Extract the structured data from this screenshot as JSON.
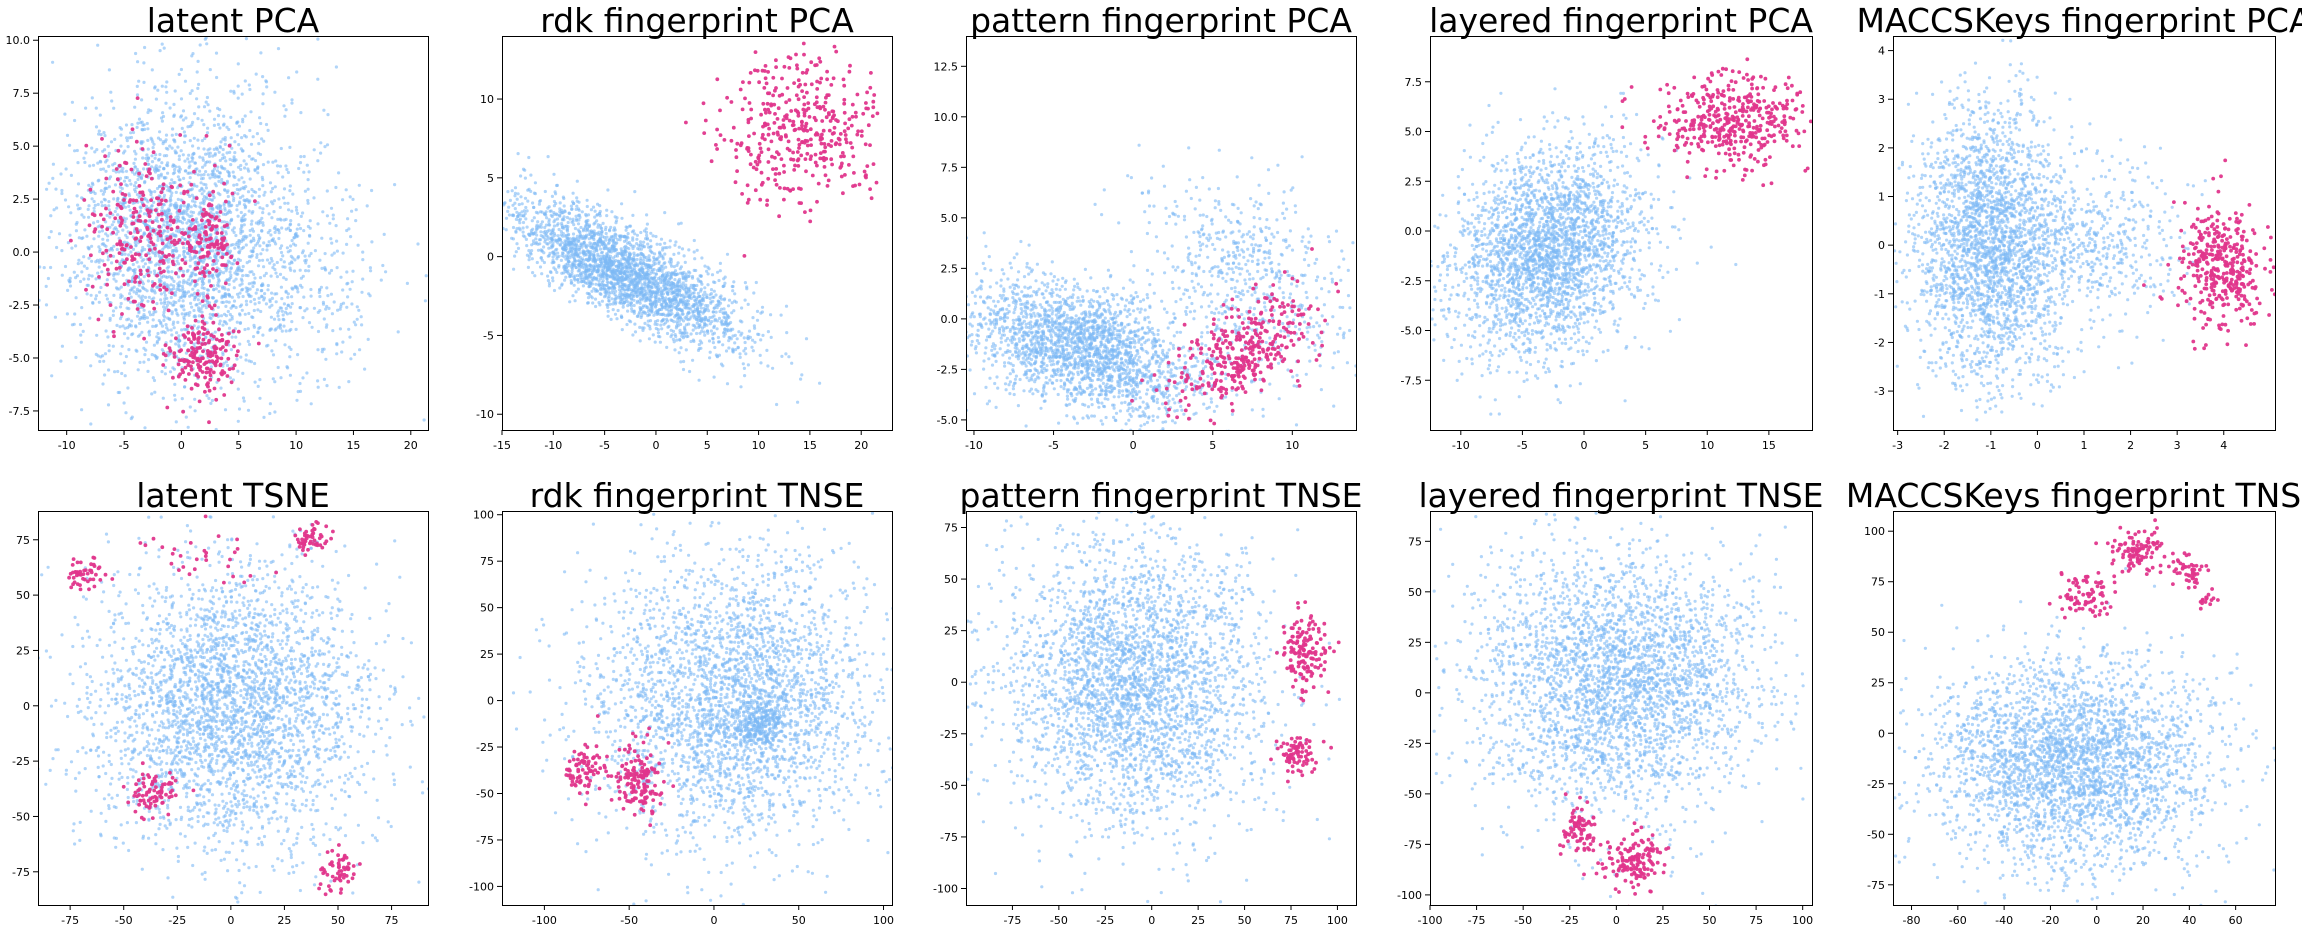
{
  "colors": {
    "background_points": "#7db9f5",
    "highlight_points": "#e0368c"
  },
  "chart_data": [
    {
      "type": "scatter",
      "title": "latent PCA",
      "xlim": [
        -12.5,
        21.5
      ],
      "ylim": [
        -8.4,
        10.2
      ],
      "xticks": [
        "-10",
        "-5",
        "0",
        "5",
        "10",
        "15",
        "20"
      ],
      "yticks": [
        "-7.5",
        "-5.0",
        "-2.5",
        "0.0",
        "2.5",
        "5.0",
        "7.5",
        "10.0"
      ],
      "series": [
        {
          "role": "background",
          "color": "#7db9f5",
          "clusters": [
            {
              "cx": 0,
              "cy": 0.5,
              "sx": 5.0,
              "sy": 3.4,
              "n": 2600
            },
            {
              "cx": 10,
              "cy": -1,
              "sx": 4,
              "sy": 2.5,
              "n": 300
            }
          ]
        },
        {
          "role": "highlight",
          "color": "#e0368c",
          "clusters": [
            {
              "cx": -4,
              "cy": 1,
              "sx": 2.2,
              "sy": 2.0,
              "n": 220
            },
            {
              "cx": 2,
              "cy": 0.5,
              "sx": 1.5,
              "sy": 1.5,
              "n": 150
            },
            {
              "cx": 2,
              "cy": -5,
              "sx": 1.6,
              "sy": 0.9,
              "n": 180
            }
          ]
        }
      ]
    },
    {
      "type": "scatter",
      "title": "rdk fingerprint PCA",
      "xlim": [
        -15,
        23
      ],
      "ylim": [
        -11,
        14
      ],
      "xticks": [
        "-15",
        "-10",
        "-5",
        "0",
        "5",
        "10",
        "15",
        "20"
      ],
      "yticks": [
        "-10",
        "-5",
        "0",
        "5",
        "10"
      ],
      "series": [
        {
          "role": "background",
          "color": "#7db9f5",
          "clusters": [
            {
              "cx": -3,
              "cy": -1,
              "sx": 6.5,
              "sy": 1.3,
              "n": 2600,
              "tilt": -0.5
            }
          ]
        },
        {
          "role": "highlight",
          "color": "#e0368c",
          "clusters": [
            {
              "cx": 14,
              "cy": 8,
              "sx": 4,
              "sy": 2.5,
              "n": 400
            }
          ]
        }
      ]
    },
    {
      "type": "scatter",
      "title": "pattern fingerprint PCA",
      "xlim": [
        -10.5,
        14
      ],
      "ylim": [
        -5.5,
        14
      ],
      "xticks": [
        "-10",
        "-5",
        "0",
        "5",
        "10"
      ],
      "yticks": [
        "-5.0",
        "-2.5",
        "0.0",
        "2.5",
        "5.0",
        "7.5",
        "10.0",
        "12.5"
      ],
      "series": [
        {
          "role": "background",
          "color": "#7db9f5",
          "clusters": [
            {
              "cx": -3,
              "cy": -1.5,
              "sx": 3.8,
              "sy": 1.4,
              "n": 2200,
              "tilt": -0.35
            },
            {
              "cx": 7,
              "cy": 2,
              "sx": 2.5,
              "sy": 3,
              "n": 600,
              "tilt": 0.9
            }
          ]
        },
        {
          "role": "highlight",
          "color": "#e0368c",
          "clusters": [
            {
              "cx": 7,
              "cy": -1.5,
              "sx": 2.5,
              "sy": 1.0,
              "n": 350,
              "tilt": 0.6
            }
          ]
        }
      ]
    },
    {
      "type": "scatter",
      "title": "layered fingerprint PCA",
      "xlim": [
        -12.5,
        18.5
      ],
      "ylim": [
        -10,
        9.8
      ],
      "xticks": [
        "-10",
        "-5",
        "0",
        "5",
        "10",
        "15"
      ],
      "yticks": [
        "-7.5",
        "-5.0",
        "-2.5",
        "0.0",
        "2.5",
        "5.0",
        "7.5"
      ],
      "series": [
        {
          "role": "background",
          "color": "#7db9f5",
          "clusters": [
            {
              "cx": -3,
              "cy": -1,
              "sx": 3.5,
              "sy": 2.8,
              "n": 2600,
              "tilt": -0.7
            }
          ]
        },
        {
          "role": "highlight",
          "color": "#e0368c",
          "clusters": [
            {
              "cx": 12,
              "cy": 5.5,
              "sx": 3,
              "sy": 1.2,
              "n": 420
            }
          ]
        }
      ]
    },
    {
      "type": "scatter",
      "title": "MACCSKeys fingerprint PCA",
      "xlim": [
        -3.1,
        5.1
      ],
      "ylim": [
        -3.8,
        4.3
      ],
      "xticks": [
        "-3",
        "-2",
        "-1",
        "0",
        "1",
        "2",
        "3",
        "4"
      ],
      "yticks": [
        "-3",
        "-2",
        "-1",
        "0",
        "1",
        "2",
        "3",
        "4"
      ],
      "series": [
        {
          "role": "background",
          "color": "#7db9f5",
          "clusters": [
            {
              "cx": -1,
              "cy": 0,
              "sx": 0.8,
              "sy": 1.4,
              "n": 2500
            },
            {
              "cx": 1.5,
              "cy": 0,
              "sx": 0.9,
              "sy": 0.8,
              "n": 400
            }
          ]
        },
        {
          "role": "highlight",
          "color": "#e0368c",
          "clusters": [
            {
              "cx": 4,
              "cy": -0.5,
              "sx": 0.45,
              "sy": 0.65,
              "n": 380
            }
          ]
        }
      ]
    },
    {
      "type": "scatter",
      "title": "latent TSNE",
      "xlim": [
        -90,
        92
      ],
      "ylim": [
        -90,
        88
      ],
      "xticks": [
        "-75",
        "-50",
        "-25",
        "0",
        "25",
        "50",
        "75"
      ],
      "yticks": [
        "-75",
        "-50",
        "-25",
        "0",
        "25",
        "50",
        "75"
      ],
      "series": [
        {
          "role": "background",
          "color": "#7db9f5",
          "clusters": [
            {
              "cx": 0,
              "cy": 0,
              "sx": 33,
              "sy": 32,
              "n": 3000
            }
          ]
        },
        {
          "role": "highlight",
          "color": "#e0368c",
          "clusters": [
            {
              "cx": -68,
              "cy": 61,
              "sx": 5,
              "sy": 4,
              "n": 50
            },
            {
              "cx": 38,
              "cy": 75,
              "sx": 4,
              "sy": 4,
              "n": 50
            },
            {
              "cx": -35,
              "cy": -40,
              "sx": 6,
              "sy": 5,
              "n": 80
            },
            {
              "cx": 50,
              "cy": -75,
              "sx": 4,
              "sy": 5,
              "n": 60
            },
            {
              "cx": -10,
              "cy": 70,
              "sx": 14,
              "sy": 6,
              "n": 30
            }
          ]
        }
      ]
    },
    {
      "type": "scatter",
      "title": "rdk fingerprint TNSE",
      "xlim": [
        -125,
        105
      ],
      "ylim": [
        -110,
        102
      ],
      "xticks": [
        "-100",
        "-50",
        "0",
        "50",
        "100"
      ],
      "yticks": [
        "-100",
        "-75",
        "-50",
        "-25",
        "0",
        "25",
        "50",
        "75",
        "100"
      ],
      "series": [
        {
          "role": "background",
          "color": "#7db9f5",
          "clusters": [
            {
              "cx": 10,
              "cy": 0,
              "sx": 40,
              "sy": 38,
              "n": 2800
            },
            {
              "cx": 28,
              "cy": -12,
              "sx": 7,
              "sy": 7,
              "n": 250
            }
          ]
        },
        {
          "role": "highlight",
          "color": "#e0368c",
          "clusters": [
            {
              "cx": -45,
              "cy": -42,
              "sx": 7,
              "sy": 9,
              "n": 150
            },
            {
              "cx": -75,
              "cy": -37,
              "sx": 6,
              "sy": 7,
              "n": 80
            }
          ]
        }
      ]
    },
    {
      "type": "scatter",
      "title": "pattern fingerprint TNSE",
      "xlim": [
        -100,
        110
      ],
      "ylim": [
        -108,
        83
      ],
      "xticks": [
        "-75",
        "-50",
        "-25",
        "0",
        "25",
        "50",
        "75",
        "100"
      ],
      "yticks": [
        "-100",
        "-75",
        "-50",
        "-25",
        "0",
        "25",
        "50",
        "75"
      ],
      "series": [
        {
          "role": "background",
          "color": "#7db9f5",
          "clusters": [
            {
              "cx": -10,
              "cy": 0,
              "sx": 35,
              "sy": 35,
              "n": 3000
            }
          ]
        },
        {
          "role": "highlight",
          "color": "#e0368c",
          "clusters": [
            {
              "cx": 82,
              "cy": 15,
              "sx": 6,
              "sy": 10,
              "n": 150
            },
            {
              "cx": 78,
              "cy": -35,
              "sx": 5,
              "sy": 5,
              "n": 80
            }
          ]
        }
      ]
    },
    {
      "type": "scatter",
      "title": "layered fingerprint TNSE",
      "xlim": [
        -100,
        105
      ],
      "ylim": [
        -105,
        90
      ],
      "xticks": [
        "-100",
        "-75",
        "-50",
        "-25",
        "0",
        "25",
        "50",
        "75",
        "100"
      ],
      "yticks": [
        "-100",
        "-75",
        "-50",
        "-25",
        "0",
        "25",
        "50",
        "75"
      ],
      "series": [
        {
          "role": "background",
          "color": "#7db9f5",
          "clusters": [
            {
              "cx": 0,
              "cy": 5,
              "sx": 38,
              "sy": 32,
              "n": 3000
            }
          ]
        },
        {
          "role": "highlight",
          "color": "#e0368c",
          "clusters": [
            {
              "cx": -20,
              "cy": -68,
              "sx": 5,
              "sy": 6,
              "n": 80
            },
            {
              "cx": 10,
              "cy": -83,
              "sx": 8,
              "sy": 7,
              "n": 150
            }
          ]
        }
      ]
    },
    {
      "type": "scatter",
      "title": "MACCSKeys fingerprint TNSE",
      "xlim": [
        -88,
        77
      ],
      "ylim": [
        -85,
        110
      ],
      "xticks": [
        "-80",
        "-60",
        "-40",
        "-20",
        "0",
        "20",
        "40",
        "60"
      ],
      "yticks": [
        "-75",
        "-50",
        "-25",
        "0",
        "25",
        "50",
        "75",
        "100"
      ],
      "series": [
        {
          "role": "background",
          "color": "#7db9f5",
          "clusters": [
            {
              "cx": -10,
              "cy": -15,
              "sx": 30,
              "sy": 25,
              "n": 3000
            }
          ]
        },
        {
          "role": "highlight",
          "color": "#e0368c",
          "clusters": [
            {
              "cx": -5,
              "cy": 68,
              "sx": 6,
              "sy": 5,
              "n": 80
            },
            {
              "cx": 18,
              "cy": 90,
              "sx": 6,
              "sy": 6,
              "n": 100
            },
            {
              "cx": 38,
              "cy": 80,
              "sx": 4,
              "sy": 4,
              "n": 50
            },
            {
              "cx": 48,
              "cy": 65,
              "sx": 2,
              "sy": 2,
              "n": 15
            }
          ]
        }
      ]
    }
  ]
}
